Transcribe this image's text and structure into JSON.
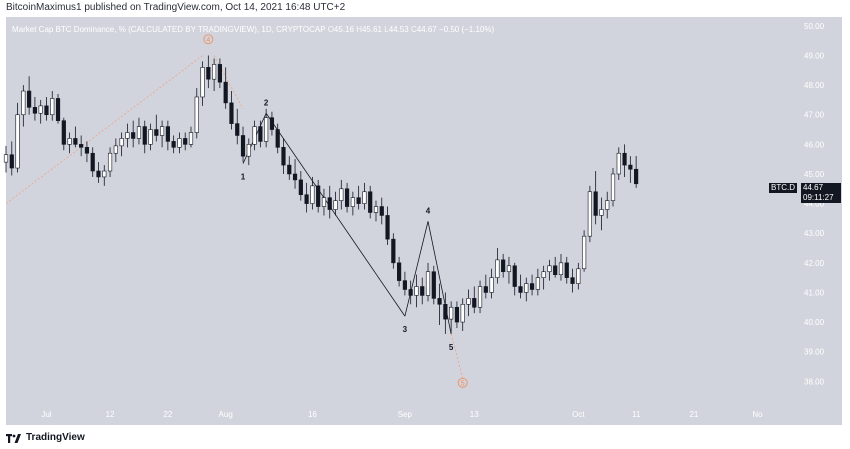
{
  "header": {
    "publisher": "BitcoinMaximus1 published on TradingView.com, Oct 14, 2021 16:48 UTC+2"
  },
  "legend": {
    "title": "Market Cap BTC Dominance, %",
    "source": "(CALCULATED BY TRADINGVIEW), 1D, CRYPTOCAP",
    "o_label": "O",
    "o": "45.16",
    "h_label": "H",
    "h": "45.61",
    "l_label": "L",
    "l": "44.53",
    "c_label": "C",
    "c": "44.67",
    "change": "−0.50 (−1.10%)"
  },
  "price_tag": {
    "symbol": "BTC.D",
    "price": "44.67",
    "countdown": "09:11:27"
  },
  "footer": {
    "brand": "TradingView"
  },
  "colors": {
    "background": "#d1d4dc",
    "up_candle": "#ffffff",
    "down_candle": "#131722",
    "wave_line": "#131722",
    "projection": "#f2a385",
    "wave_marker": "#f0905f"
  },
  "chart_data": {
    "type": "candlestick",
    "title": "Market Cap BTC Dominance, %",
    "ylim": [
      37.2,
      50.3
    ],
    "y_ticks": [
      "50.00",
      "49.00",
      "48.00",
      "47.00",
      "46.00",
      "45.00",
      "44.00",
      "43.00",
      "42.00",
      "41.00",
      "40.00",
      "39.00",
      "38.00"
    ],
    "y_tick_values": [
      50,
      49,
      48,
      47,
      46,
      45,
      44,
      43,
      42,
      41,
      40,
      39,
      38
    ],
    "x_ticks": [
      "Jul",
      "12",
      "22",
      "Aug",
      "16",
      "Sep",
      "13",
      "Oct",
      "11",
      "21",
      "No"
    ],
    "x_tick_days": [
      31,
      42,
      52,
      62,
      77,
      93,
      105,
      123,
      133,
      143,
      154
    ],
    "x_range_days": [
      24,
      161
    ],
    "candles": [
      {
        "d": 24,
        "o": 45.4,
        "h": 45.95,
        "l": 45.05,
        "c": 45.65
      },
      {
        "d": 25,
        "o": 45.65,
        "h": 46.1,
        "l": 44.95,
        "c": 45.2
      },
      {
        "d": 26,
        "o": 45.2,
        "h": 47.4,
        "l": 45.05,
        "c": 47.0
      },
      {
        "d": 27,
        "o": 47.0,
        "h": 48.0,
        "l": 46.6,
        "c": 47.8
      },
      {
        "d": 28,
        "o": 47.8,
        "h": 48.3,
        "l": 47.0,
        "c": 47.25
      },
      {
        "d": 29,
        "o": 47.25,
        "h": 47.6,
        "l": 46.8,
        "c": 47.05
      },
      {
        "d": 30,
        "o": 47.05,
        "h": 47.5,
        "l": 46.7,
        "c": 47.3
      },
      {
        "d": 31,
        "o": 47.3,
        "h": 47.6,
        "l": 46.8,
        "c": 47.0
      },
      {
        "d": 32,
        "o": 47.0,
        "h": 47.8,
        "l": 46.8,
        "c": 47.55
      },
      {
        "d": 33,
        "o": 47.55,
        "h": 47.7,
        "l": 46.7,
        "c": 46.8
      },
      {
        "d": 34,
        "o": 46.8,
        "h": 46.9,
        "l": 45.8,
        "c": 46.0
      },
      {
        "d": 35,
        "o": 46.0,
        "h": 46.4,
        "l": 45.7,
        "c": 46.2
      },
      {
        "d": 36,
        "o": 46.2,
        "h": 46.6,
        "l": 45.9,
        "c": 46.0
      },
      {
        "d": 37,
        "o": 46.0,
        "h": 46.3,
        "l": 45.6,
        "c": 45.9
      },
      {
        "d": 38,
        "o": 45.9,
        "h": 46.1,
        "l": 45.4,
        "c": 45.7
      },
      {
        "d": 39,
        "o": 45.7,
        "h": 45.9,
        "l": 44.9,
        "c": 45.1
      },
      {
        "d": 40,
        "o": 45.1,
        "h": 45.4,
        "l": 44.7,
        "c": 44.9
      },
      {
        "d": 41,
        "o": 44.9,
        "h": 45.3,
        "l": 44.6,
        "c": 45.1
      },
      {
        "d": 42,
        "o": 45.1,
        "h": 45.9,
        "l": 44.9,
        "c": 45.7
      },
      {
        "d": 43,
        "o": 45.7,
        "h": 46.2,
        "l": 45.4,
        "c": 45.95
      },
      {
        "d": 44,
        "o": 45.95,
        "h": 46.4,
        "l": 45.6,
        "c": 46.2
      },
      {
        "d": 45,
        "o": 46.2,
        "h": 46.7,
        "l": 45.9,
        "c": 46.4
      },
      {
        "d": 46,
        "o": 46.4,
        "h": 46.8,
        "l": 45.9,
        "c": 46.2
      },
      {
        "d": 47,
        "o": 46.2,
        "h": 46.9,
        "l": 46.0,
        "c": 46.6
      },
      {
        "d": 48,
        "o": 46.6,
        "h": 46.8,
        "l": 45.7,
        "c": 46.0
      },
      {
        "d": 49,
        "o": 46.0,
        "h": 46.7,
        "l": 45.8,
        "c": 46.5
      },
      {
        "d": 50,
        "o": 46.5,
        "h": 47.0,
        "l": 46.1,
        "c": 46.3
      },
      {
        "d": 51,
        "o": 46.3,
        "h": 46.8,
        "l": 45.9,
        "c": 46.6
      },
      {
        "d": 52,
        "o": 46.6,
        "h": 46.8,
        "l": 45.8,
        "c": 46.1
      },
      {
        "d": 53,
        "o": 46.1,
        "h": 46.3,
        "l": 45.7,
        "c": 45.9
      },
      {
        "d": 54,
        "o": 45.9,
        "h": 46.4,
        "l": 45.7,
        "c": 46.2
      },
      {
        "d": 55,
        "o": 46.2,
        "h": 46.4,
        "l": 45.8,
        "c": 46.0
      },
      {
        "d": 56,
        "o": 46.0,
        "h": 46.6,
        "l": 45.9,
        "c": 46.4
      },
      {
        "d": 57,
        "o": 46.4,
        "h": 47.9,
        "l": 46.2,
        "c": 47.6
      },
      {
        "d": 58,
        "o": 47.6,
        "h": 48.8,
        "l": 47.3,
        "c": 48.6
      },
      {
        "d": 59,
        "o": 48.6,
        "h": 49.0,
        "l": 47.9,
        "c": 48.2
      },
      {
        "d": 60,
        "o": 48.2,
        "h": 48.9,
        "l": 47.8,
        "c": 48.7
      },
      {
        "d": 61,
        "o": 48.7,
        "h": 48.9,
        "l": 47.9,
        "c": 48.1
      },
      {
        "d": 62,
        "o": 48.1,
        "h": 48.6,
        "l": 47.2,
        "c": 47.4
      },
      {
        "d": 63,
        "o": 47.4,
        "h": 47.8,
        "l": 46.5,
        "c": 46.7
      },
      {
        "d": 64,
        "o": 46.7,
        "h": 47.2,
        "l": 46.0,
        "c": 46.3
      },
      {
        "d": 65,
        "o": 46.3,
        "h": 46.6,
        "l": 45.4,
        "c": 45.6
      },
      {
        "d": 66,
        "o": 45.6,
        "h": 46.2,
        "l": 45.3,
        "c": 46.0
      },
      {
        "d": 67,
        "o": 46.0,
        "h": 46.8,
        "l": 45.8,
        "c": 46.6
      },
      {
        "d": 68,
        "o": 46.6,
        "h": 46.8,
        "l": 45.9,
        "c": 46.1
      },
      {
        "d": 69,
        "o": 46.1,
        "h": 47.2,
        "l": 45.9,
        "c": 46.9
      },
      {
        "d": 70,
        "o": 46.9,
        "h": 47.1,
        "l": 46.3,
        "c": 46.5
      },
      {
        "d": 71,
        "o": 46.5,
        "h": 46.7,
        "l": 45.7,
        "c": 45.9
      },
      {
        "d": 72,
        "o": 45.9,
        "h": 46.2,
        "l": 45.0,
        "c": 45.3
      },
      {
        "d": 73,
        "o": 45.3,
        "h": 45.6,
        "l": 44.8,
        "c": 45.0
      },
      {
        "d": 74,
        "o": 45.0,
        "h": 45.5,
        "l": 44.5,
        "c": 44.8
      },
      {
        "d": 75,
        "o": 44.8,
        "h": 45.1,
        "l": 44.1,
        "c": 44.3
      },
      {
        "d": 76,
        "o": 44.3,
        "h": 44.7,
        "l": 43.7,
        "c": 44.0
      },
      {
        "d": 77,
        "o": 44.0,
        "h": 44.9,
        "l": 43.8,
        "c": 44.6
      },
      {
        "d": 78,
        "o": 44.6,
        "h": 44.8,
        "l": 43.7,
        "c": 43.9
      },
      {
        "d": 79,
        "o": 43.9,
        "h": 44.5,
        "l": 43.6,
        "c": 44.2
      },
      {
        "d": 80,
        "o": 44.2,
        "h": 44.6,
        "l": 43.5,
        "c": 43.8
      },
      {
        "d": 81,
        "o": 43.8,
        "h": 44.4,
        "l": 43.6,
        "c": 44.1
      },
      {
        "d": 82,
        "o": 44.1,
        "h": 44.8,
        "l": 43.8,
        "c": 44.5
      },
      {
        "d": 83,
        "o": 44.5,
        "h": 44.7,
        "l": 43.7,
        "c": 43.9
      },
      {
        "d": 84,
        "o": 43.9,
        "h": 44.4,
        "l": 43.6,
        "c": 44.2
      },
      {
        "d": 85,
        "o": 44.2,
        "h": 44.6,
        "l": 43.8,
        "c": 44.0
      },
      {
        "d": 86,
        "o": 44.0,
        "h": 44.7,
        "l": 43.8,
        "c": 44.4
      },
      {
        "d": 87,
        "o": 44.4,
        "h": 44.6,
        "l": 43.5,
        "c": 43.7
      },
      {
        "d": 88,
        "o": 43.7,
        "h": 44.1,
        "l": 43.4,
        "c": 43.9
      },
      {
        "d": 89,
        "o": 43.9,
        "h": 44.2,
        "l": 43.3,
        "c": 43.6
      },
      {
        "d": 90,
        "o": 43.6,
        "h": 43.9,
        "l": 42.6,
        "c": 42.8
      },
      {
        "d": 91,
        "o": 42.8,
        "h": 43.0,
        "l": 41.8,
        "c": 42.0
      },
      {
        "d": 92,
        "o": 42.0,
        "h": 42.2,
        "l": 41.2,
        "c": 41.4
      },
      {
        "d": 93,
        "o": 41.4,
        "h": 41.7,
        "l": 40.9,
        "c": 41.1
      },
      {
        "d": 94,
        "o": 41.1,
        "h": 41.4,
        "l": 40.6,
        "c": 40.9
      },
      {
        "d": 95,
        "o": 40.9,
        "h": 41.6,
        "l": 40.5,
        "c": 41.2
      },
      {
        "d": 96,
        "o": 41.2,
        "h": 41.5,
        "l": 40.6,
        "c": 40.9
      },
      {
        "d": 97,
        "o": 40.9,
        "h": 42.0,
        "l": 40.7,
        "c": 41.7
      },
      {
        "d": 98,
        "o": 41.7,
        "h": 41.9,
        "l": 40.6,
        "c": 40.8
      },
      {
        "d": 99,
        "o": 40.8,
        "h": 41.3,
        "l": 39.9,
        "c": 40.6
      },
      {
        "d": 100,
        "o": 40.6,
        "h": 41.0,
        "l": 39.6,
        "c": 40.1
      },
      {
        "d": 101,
        "o": 40.1,
        "h": 40.7,
        "l": 39.6,
        "c": 40.5
      },
      {
        "d": 102,
        "o": 40.5,
        "h": 40.7,
        "l": 39.8,
        "c": 40.0
      },
      {
        "d": 103,
        "o": 40.0,
        "h": 40.8,
        "l": 39.7,
        "c": 40.6
      },
      {
        "d": 104,
        "o": 40.6,
        "h": 41.1,
        "l": 40.2,
        "c": 40.8
      },
      {
        "d": 105,
        "o": 40.8,
        "h": 41.2,
        "l": 40.3,
        "c": 40.5
      },
      {
        "d": 106,
        "o": 40.5,
        "h": 41.4,
        "l": 40.3,
        "c": 41.2
      },
      {
        "d": 107,
        "o": 41.2,
        "h": 41.6,
        "l": 40.8,
        "c": 41.0
      },
      {
        "d": 108,
        "o": 41.0,
        "h": 41.8,
        "l": 40.8,
        "c": 41.5
      },
      {
        "d": 109,
        "o": 41.5,
        "h": 42.5,
        "l": 41.3,
        "c": 42.1
      },
      {
        "d": 110,
        "o": 42.1,
        "h": 42.3,
        "l": 41.5,
        "c": 41.7
      },
      {
        "d": 111,
        "o": 41.7,
        "h": 42.2,
        "l": 41.3,
        "c": 41.9
      },
      {
        "d": 112,
        "o": 41.9,
        "h": 42.0,
        "l": 40.9,
        "c": 41.2
      },
      {
        "d": 113,
        "o": 41.2,
        "h": 41.6,
        "l": 40.8,
        "c": 41.0
      },
      {
        "d": 114,
        "o": 41.0,
        "h": 41.5,
        "l": 40.7,
        "c": 41.3
      },
      {
        "d": 115,
        "o": 41.3,
        "h": 41.6,
        "l": 40.9,
        "c": 41.1
      },
      {
        "d": 116,
        "o": 41.1,
        "h": 41.8,
        "l": 40.9,
        "c": 41.5
      },
      {
        "d": 117,
        "o": 41.5,
        "h": 41.9,
        "l": 41.1,
        "c": 41.7
      },
      {
        "d": 118,
        "o": 41.7,
        "h": 42.1,
        "l": 41.4,
        "c": 41.9
      },
      {
        "d": 119,
        "o": 41.9,
        "h": 42.2,
        "l": 41.5,
        "c": 41.6
      },
      {
        "d": 120,
        "o": 41.6,
        "h": 42.3,
        "l": 41.4,
        "c": 42.0
      },
      {
        "d": 121,
        "o": 42.0,
        "h": 42.2,
        "l": 41.3,
        "c": 41.5
      },
      {
        "d": 122,
        "o": 41.5,
        "h": 41.8,
        "l": 41.0,
        "c": 41.3
      },
      {
        "d": 123,
        "o": 41.3,
        "h": 42.0,
        "l": 41.1,
        "c": 41.8
      },
      {
        "d": 124,
        "o": 41.8,
        "h": 43.1,
        "l": 41.7,
        "c": 42.9
      },
      {
        "d": 125,
        "o": 42.9,
        "h": 44.6,
        "l": 42.7,
        "c": 44.4
      },
      {
        "d": 126,
        "o": 44.4,
        "h": 45.1,
        "l": 43.3,
        "c": 43.6
      },
      {
        "d": 127,
        "o": 43.6,
        "h": 44.2,
        "l": 43.1,
        "c": 43.8
      },
      {
        "d": 128,
        "o": 43.8,
        "h": 44.4,
        "l": 43.5,
        "c": 44.1
      },
      {
        "d": 129,
        "o": 44.1,
        "h": 45.2,
        "l": 43.9,
        "c": 45.0
      },
      {
        "d": 130,
        "o": 45.0,
        "h": 45.9,
        "l": 44.8,
        "c": 45.7
      },
      {
        "d": 131,
        "o": 45.7,
        "h": 46.0,
        "l": 44.9,
        "c": 45.3
      },
      {
        "d": 132,
        "o": 45.3,
        "h": 45.6,
        "l": 44.7,
        "c": 45.16
      },
      {
        "d": 133,
        "o": 45.16,
        "h": 45.61,
        "l": 44.53,
        "c": 44.67
      }
    ],
    "wave_points": [
      {
        "label": "1",
        "d": 65,
        "y": 45.35
      },
      {
        "label": "2",
        "d": 69,
        "y": 47.05
      },
      {
        "label": "3",
        "d": 93,
        "y": 40.2
      },
      {
        "label": "4",
        "d": 97,
        "y": 43.4
      },
      {
        "label": "5",
        "d": 101,
        "y": 39.6
      }
    ],
    "wave_labels": [
      "1",
      "2",
      "3",
      "4",
      "5"
    ],
    "marker_labels": [
      "4",
      "5"
    ],
    "markers": [
      {
        "label": "4",
        "d": 59,
        "y": 49.55
      },
      {
        "label": "5",
        "d": 103,
        "y": 37.95
      }
    ],
    "projection_lines": [
      {
        "from_d": 24,
        "from_y": 44.0,
        "to_d": 58,
        "to_y": 49.0
      },
      {
        "from_d": 60,
        "from_y": 49.0,
        "to_d": 65,
        "to_y": 47.2
      },
      {
        "from_d": 101,
        "from_y": 39.6,
        "to_d": 103,
        "to_y": 38.1
      }
    ]
  }
}
